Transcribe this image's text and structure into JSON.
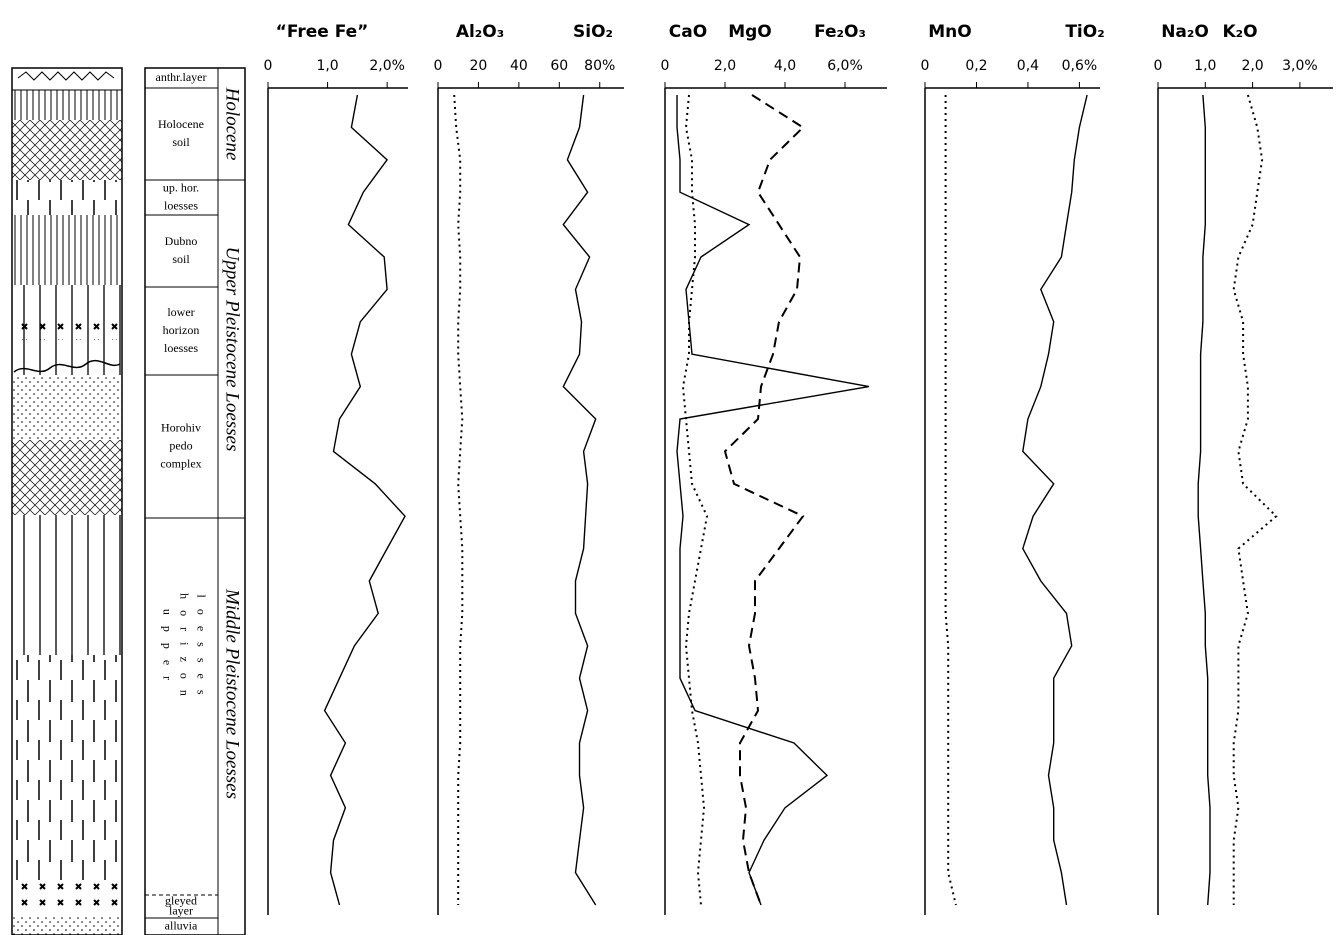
{
  "stratigraphy": {
    "units": [
      {
        "lines": [
          "anthr.layer"
        ]
      },
      {
        "lines": [
          "Holocene",
          "soil"
        ]
      },
      {
        "lines": [
          "up. hor.",
          "loesses"
        ]
      },
      {
        "lines": [
          "Dubno",
          "soil"
        ]
      },
      {
        "lines": [
          "lower",
          "horizon",
          "loesses"
        ]
      },
      {
        "lines": [
          "Horohiv",
          "pedo",
          "complex"
        ]
      },
      {
        "lines": [
          "u p p e r",
          "h o r i z o n",
          "l o e s s e s"
        ]
      },
      {
        "lines": [
          "gleyed",
          "layer"
        ]
      },
      {
        "lines": [
          "alluvia"
        ]
      }
    ],
    "epochs": [
      "Holocene",
      "Upper Pleistocene Loesses",
      "Middle Pleistocene Loesses"
    ]
  },
  "chart_data": [
    {
      "type": "line",
      "categories": [
        null,
        null,
        null,
        null,
        null,
        null,
        null,
        null,
        null,
        null,
        null,
        null,
        null,
        null,
        null,
        null,
        null,
        null,
        null,
        null,
        null,
        null,
        null,
        null,
        null,
        null
      ],
      "xlim": [
        0,
        2.35
      ],
      "xticks": [
        0,
        {
          "value": 1,
          "label": "1,0"
        },
        {
          "value": 2,
          "label": "2,0%"
        }
      ],
      "series": [
        {
          "name": "“Free Fe”",
          "color": "#000000",
          "style": "solid",
          "values": [
            1.5,
            1.4,
            2.0,
            1.6,
            1.35,
            1.95,
            2.0,
            1.55,
            1.4,
            1.55,
            1.2,
            1.1,
            1.8,
            2.3,
            2.0,
            1.7,
            1.85,
            1.45,
            1.2,
            0.95,
            1.3,
            1.05,
            1.3,
            1.1,
            1.05,
            1.2
          ]
        }
      ]
    },
    {
      "type": "line",
      "categories": [
        null,
        null,
        null,
        null,
        null,
        null,
        null,
        null,
        null,
        null,
        null,
        null,
        null,
        null,
        null,
        null,
        null,
        null,
        null,
        null,
        null,
        null,
        null,
        null,
        null,
        null
      ],
      "xlim": [
        0,
        92
      ],
      "xticks": [
        0,
        20,
        40,
        60,
        {
          "value": 80,
          "label": "80%"
        }
      ],
      "series": [
        {
          "name": "Al₂O₃",
          "color": "#000000",
          "style": "dotted",
          "values": [
            8,
            9,
            11,
            11,
            10,
            11,
            11,
            10,
            10,
            11,
            12,
            11,
            10,
            11,
            12,
            12,
            12,
            11,
            11,
            11,
            11,
            10,
            10,
            10,
            10,
            10
          ]
        },
        {
          "name": "SiO₂",
          "color": "#000000",
          "style": "solid",
          "values": [
            72,
            70,
            64,
            74,
            62,
            75,
            68,
            71,
            70,
            62,
            78,
            72,
            74,
            73,
            72,
            68,
            68,
            74,
            70,
            74,
            70,
            70,
            72,
            70,
            68,
            78
          ]
        }
      ]
    },
    {
      "type": "line",
      "categories": [
        null,
        null,
        null,
        null,
        null,
        null,
        null,
        null,
        null,
        null,
        null,
        null,
        null,
        null,
        null,
        null,
        null,
        null,
        null,
        null,
        null,
        null,
        null,
        null,
        null,
        null
      ],
      "xlim": [
        0,
        7.4
      ],
      "xticks": [
        0,
        {
          "value": 2,
          "label": "2,0"
        },
        {
          "value": 4,
          "label": "4,0"
        },
        {
          "value": 6,
          "label": "6,0%"
        }
      ],
      "series": [
        {
          "name": "CaO",
          "color": "#000000",
          "style": "solid",
          "values": [
            0.4,
            0.4,
            0.5,
            0.5,
            2.8,
            1.2,
            0.7,
            0.8,
            0.9,
            6.8,
            0.5,
            0.4,
            0.5,
            0.6,
            0.5,
            0.5,
            0.5,
            0.5,
            0.5,
            1.0,
            4.3,
            5.4,
            4.0,
            3.3,
            2.8,
            3.2
          ]
        },
        {
          "name": "MgO",
          "color": "#000000",
          "style": "dotted",
          "values": [
            0.8,
            0.7,
            0.9,
            0.9,
            1.0,
            1.0,
            0.9,
            0.8,
            0.8,
            0.6,
            0.7,
            0.8,
            0.9,
            1.4,
            1.2,
            1.0,
            0.8,
            0.7,
            0.8,
            0.9,
            1.1,
            1.2,
            1.3,
            1.2,
            1.1,
            1.2
          ]
        },
        {
          "name": "Fe₂O₃",
          "color": "#000000",
          "style": "dashed",
          "values": [
            2.9,
            4.6,
            3.5,
            3.1,
            3.8,
            4.5,
            4.4,
            3.8,
            3.6,
            3.2,
            3.1,
            2.0,
            2.3,
            4.6,
            3.8,
            3.0,
            3.0,
            2.8,
            3.0,
            3.1,
            2.5,
            2.5,
            2.7,
            2.6,
            2.8,
            3.2
          ]
        }
      ]
    },
    {
      "type": "line",
      "categories": [
        null,
        null,
        null,
        null,
        null,
        null,
        null,
        null,
        null,
        null,
        null,
        null,
        null,
        null,
        null,
        null,
        null,
        null,
        null,
        null,
        null,
        null,
        null,
        null,
        null,
        null
      ],
      "xlim": [
        0,
        0.68
      ],
      "xticks": [
        0,
        {
          "value": 0.2,
          "label": "0,2"
        },
        {
          "value": 0.4,
          "label": "0,4"
        },
        {
          "value": 0.6,
          "label": "0,6%"
        }
      ],
      "series": [
        {
          "name": "MnO",
          "color": "#000000",
          "style": "dotted",
          "values": [
            0.08,
            0.08,
            0.08,
            0.08,
            0.08,
            0.08,
            0.08,
            0.08,
            0.08,
            0.08,
            0.08,
            0.08,
            0.08,
            0.08,
            0.08,
            0.08,
            0.08,
            0.09,
            0.09,
            0.09,
            0.09,
            0.09,
            0.09,
            0.09,
            0.09,
            0.12
          ]
        },
        {
          "name": "TiO₂",
          "color": "#000000",
          "style": "solid",
          "values": [
            0.63,
            0.6,
            0.58,
            0.57,
            0.55,
            0.53,
            0.45,
            0.5,
            0.48,
            0.45,
            0.4,
            0.38,
            0.5,
            0.42,
            0.38,
            0.45,
            0.55,
            0.57,
            0.5,
            0.5,
            0.5,
            0.48,
            0.5,
            0.5,
            0.53,
            0.55
          ]
        }
      ]
    },
    {
      "type": "line",
      "categories": [
        null,
        null,
        null,
        null,
        null,
        null,
        null,
        null,
        null,
        null,
        null,
        null,
        null,
        null,
        null,
        null,
        null,
        null,
        null,
        null,
        null,
        null,
        null,
        null,
        null,
        null
      ],
      "xlim": [
        0,
        3.7
      ],
      "xticks": [
        0,
        {
          "value": 1,
          "label": "1,0"
        },
        {
          "value": 2,
          "label": "2,0"
        },
        {
          "value": 3,
          "label": "3,0%"
        }
      ],
      "series": [
        {
          "name": "Na₂O",
          "color": "#000000",
          "style": "solid",
          "values": [
            0.95,
            1.0,
            1.0,
            1.0,
            1.0,
            0.95,
            0.95,
            0.95,
            0.9,
            0.9,
            0.9,
            0.9,
            0.85,
            0.85,
            0.9,
            0.95,
            1.0,
            1.0,
            1.05,
            1.05,
            1.05,
            1.05,
            1.1,
            1.1,
            1.1,
            1.05
          ]
        },
        {
          "name": "K₂O",
          "color": "#000000",
          "style": "dotted",
          "values": [
            1.9,
            2.1,
            2.2,
            2.1,
            2.0,
            1.7,
            1.6,
            1.8,
            1.8,
            1.9,
            1.9,
            1.7,
            1.8,
            2.5,
            1.7,
            1.8,
            1.9,
            1.7,
            1.7,
            1.7,
            1.6,
            1.6,
            1.7,
            1.6,
            1.6,
            1.6
          ]
        }
      ]
    }
  ]
}
